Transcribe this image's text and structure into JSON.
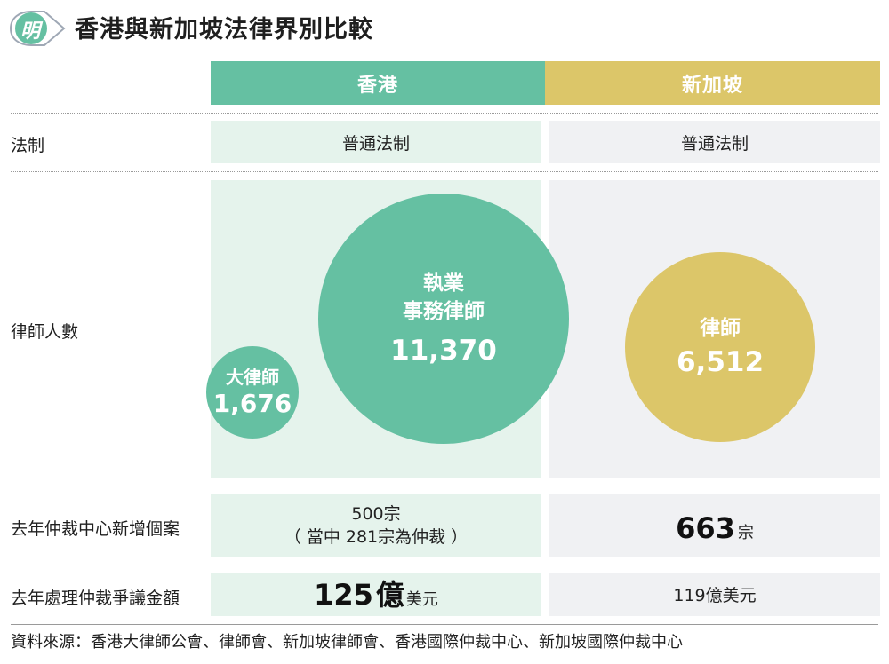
{
  "header": {
    "logo_char": "明",
    "title": "香港與新加坡法律界別比較"
  },
  "columns": {
    "hk": "香港",
    "sg": "新加坡"
  },
  "rows": {
    "legal_system": {
      "label": "法制",
      "hk": "普通法制",
      "sg": "普通法制"
    },
    "lawyers": {
      "label": "律師人數",
      "hk_solicitors_label_line1": "執業",
      "hk_solicitors_label_line2": "事務律師",
      "hk_solicitors_value": "11,370",
      "hk_barristers_label": "大律師",
      "hk_barristers_value": "1,676",
      "sg_lawyers_label": "律師",
      "sg_lawyers_value": "6,512"
    },
    "arbitration_cases": {
      "label": "去年仲裁中心新增個案",
      "hk_line1": "500宗",
      "hk_line2": "（ 當中 281宗為仲裁 ）",
      "sg_value": "663",
      "sg_unit": "宗"
    },
    "dispute_amount": {
      "label": "去年處理仲裁爭議金額",
      "hk_value": "125",
      "hk_unit_big": "億",
      "hk_unit_small": "美元",
      "sg": "119億美元"
    }
  },
  "source": "資料來源：香港大律師公會、律師會、新加坡律師會、香港國際仲裁中心、新加坡國際仲裁中心",
  "colors": {
    "hk": "#65c0a2",
    "sg": "#dcc669",
    "hk_cell": "#e5f3ec",
    "sg_cell": "#f0f1f3"
  }
}
